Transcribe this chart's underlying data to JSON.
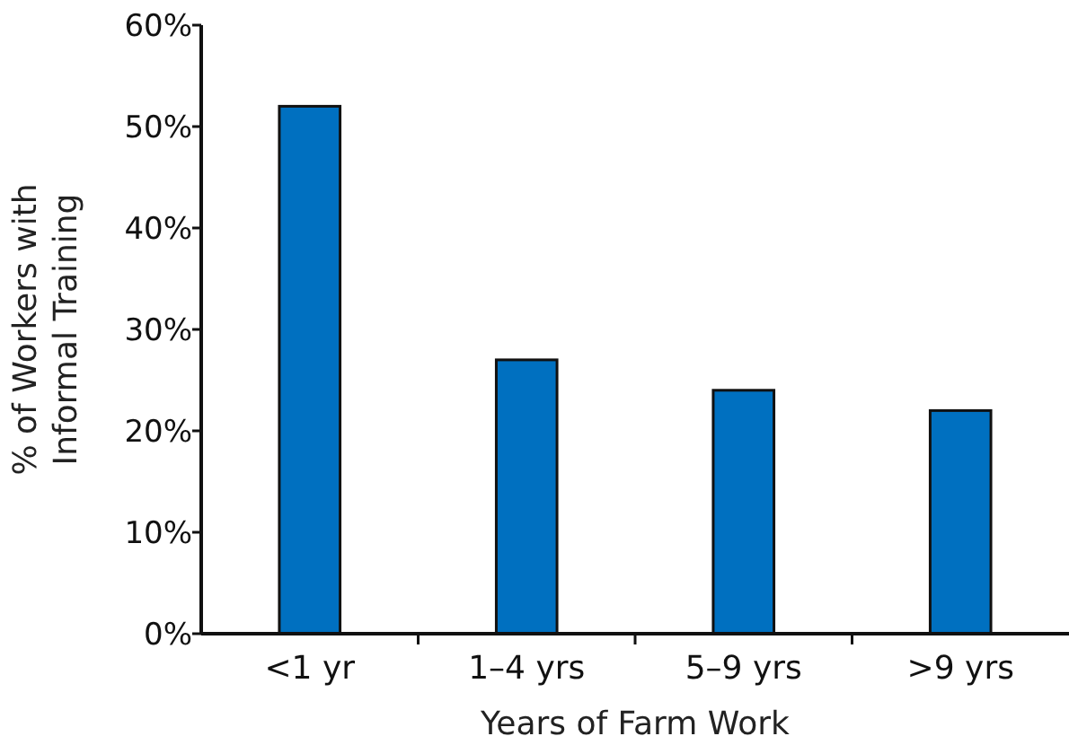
{
  "chart_data": {
    "type": "bar",
    "xlabel": "Years of Farm Work",
    "ylabel": "% of Workers with Informal Training",
    "categories": [
      "<1 yr",
      "1–4 yrs",
      "5–9 yrs",
      ">9 yrs"
    ],
    "values": [
      52,
      27,
      24,
      22
    ],
    "color": "#0070c0",
    "ylim": [
      0,
      60
    ],
    "yticks": [
      {
        "value": 0,
        "label": "0%"
      },
      {
        "value": 10,
        "label": "10%"
      },
      {
        "value": 20,
        "label": "20%"
      },
      {
        "value": 30,
        "label": "30%"
      },
      {
        "value": 40,
        "label": "40%"
      },
      {
        "value": 50,
        "label": "50%"
      },
      {
        "value": 60,
        "label": "60%"
      }
    ],
    "grid": false
  }
}
